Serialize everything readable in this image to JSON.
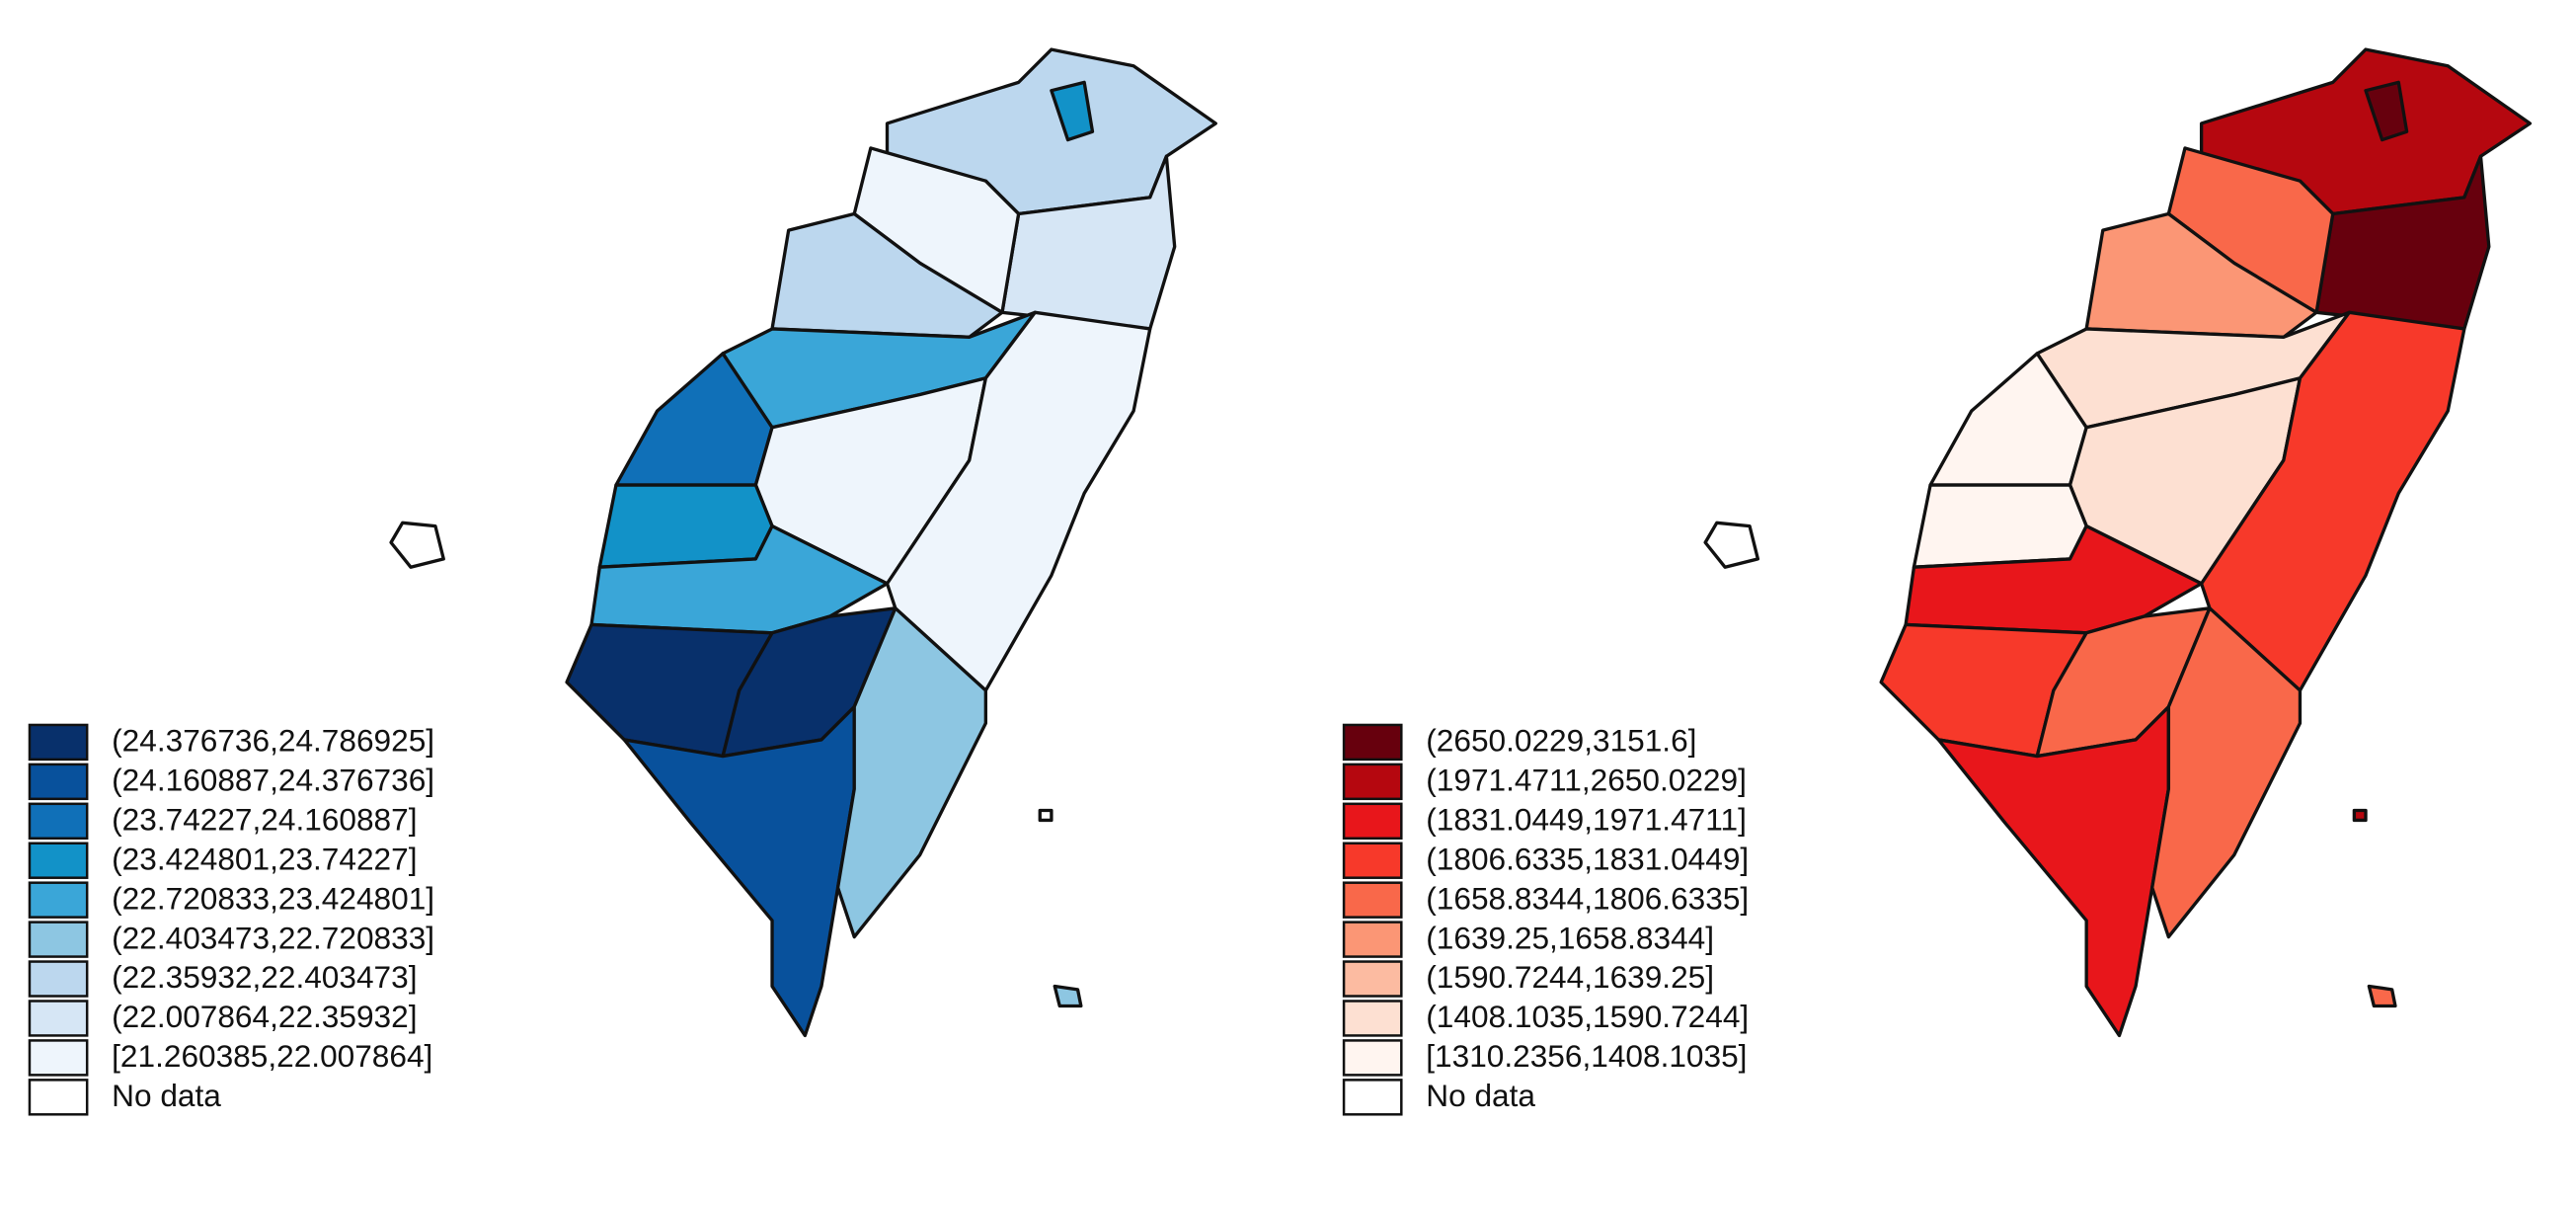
{
  "maps": [
    {
      "legend": [
        {
          "label": "(24.376736,24.786925]",
          "color": "#08306b"
        },
        {
          "label": "(24.160887,24.376736]",
          "color": "#08519c"
        },
        {
          "label": "(23.74227,24.160887]",
          "color": "#1070b8"
        },
        {
          "label": "(23.424801,23.74227]",
          "color": "#1292c8"
        },
        {
          "label": "(22.720833,23.424801]",
          "color": "#3aa6d8"
        },
        {
          "label": "(22.403473,22.720833]",
          "color": "#8dc6e2"
        },
        {
          "label": "(22.35932,22.403473]",
          "color": "#bcd7ee"
        },
        {
          "label": "(22.007864,22.35932]",
          "color": "#d6e6f5"
        },
        {
          "label": "[21.260385,22.007864]",
          "color": "#eef5fc"
        },
        {
          "label": "No data",
          "color": "#ffffff"
        }
      ]
    },
    {
      "legend": [
        {
          "label": "(2650.0229,3151.6]",
          "color": "#67000d"
        },
        {
          "label": "(1971.4711,2650.0229]",
          "color": "#b5070f"
        },
        {
          "label": "(1831.0449,1971.4711]",
          "color": "#e8161b"
        },
        {
          "label": "(1806.6335,1831.0449]",
          "color": "#f7392a"
        },
        {
          "label": "(1658.8344,1806.6335]",
          "color": "#f9684a"
        },
        {
          "label": "(1639.25,1658.8344]",
          "color": "#fb9675"
        },
        {
          "label": "(1590.7244,1639.25]",
          "color": "#fcbba1"
        },
        {
          "label": "(1408.1035,1590.7244]",
          "color": "#fde0d2"
        },
        {
          "label": "[1310.2356,1408.1035]",
          "color": "#fff5f0"
        },
        {
          "label": "No data",
          "color": "#ffffff"
        }
      ]
    }
  ]
}
